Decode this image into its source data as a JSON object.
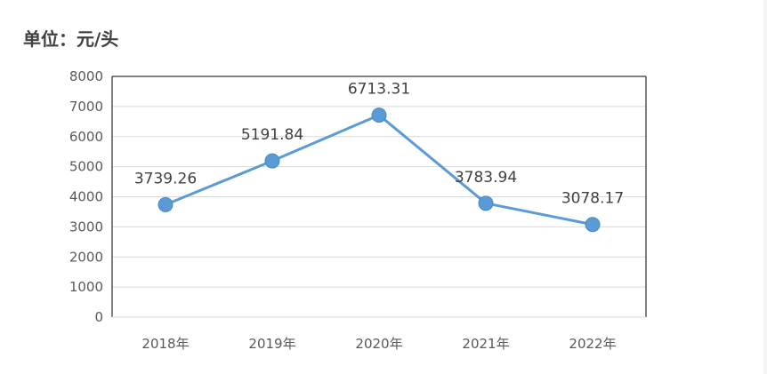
{
  "unit_label": "单位：元/头",
  "chart_data": {
    "type": "line",
    "categories": [
      "2018年",
      "2019年",
      "2020年",
      "2021年",
      "2022年"
    ],
    "values": [
      3739.26,
      5191.84,
      6713.31,
      3783.94,
      3078.17
    ],
    "value_labels": [
      "3739.26",
      "5191.84",
      "6713.31",
      "3783.94",
      "3078.17"
    ],
    "ylim": [
      0,
      8000
    ],
    "yticks": [
      "0",
      "1000",
      "2000",
      "3000",
      "4000",
      "5000",
      "6000",
      "7000",
      "8000"
    ],
    "grid": true,
    "legend": "none",
    "line_color": "#5B9BD5",
    "marker_color": "#5B9BD5",
    "grid_color": "#D9D9D9"
  }
}
